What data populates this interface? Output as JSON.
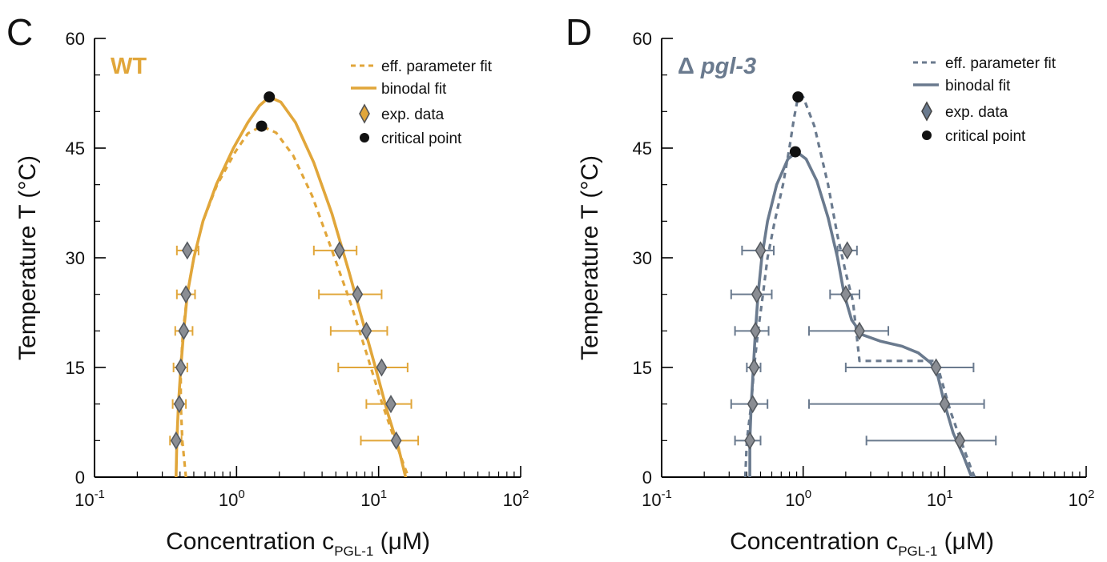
{
  "figure": {
    "panels": [
      {
        "letter": "C",
        "label": "WT",
        "color": "#e1a63a",
        "legend": [
          "eff. parameter fit",
          "binodal fit",
          "exp. data",
          "critical point"
        ]
      },
      {
        "letter": "D",
        "label_symbol": "Δ",
        "label_gene": "pgl-3",
        "color": "#6a7a8e",
        "legend": [
          "eff. parameter fit",
          "binodal fit",
          "exp. data",
          "critical point"
        ]
      }
    ],
    "xlabel_main": "Concentration c",
    "xlabel_sub": "PGL-1",
    "xlabel_unit": "(μM)",
    "ylabel": "Temperature T (°C)",
    "xtick_base": "10",
    "xtick_exps": [
      "-1",
      "0",
      "1",
      "2"
    ],
    "ytick_labels": [
      "0",
      "15",
      "30",
      "45",
      "60"
    ]
  },
  "chart_data": [
    {
      "type": "scatter",
      "panel": "C",
      "title": "WT",
      "xlabel": "Concentration cPGL-1 (μM)",
      "ylabel": "Temperature T (°C)",
      "xscale": "log",
      "xlim": [
        0.1,
        100
      ],
      "ylim": [
        0,
        60
      ],
      "xticks": [
        0.1,
        1,
        10,
        100
      ],
      "yticks": [
        0,
        15,
        30,
        45,
        60
      ],
      "legend_position": "top-right",
      "series": [
        {
          "name": "exp. data",
          "kind": "points-with-xerr",
          "color": "#e1a63a",
          "points": [
            {
              "x": 0.45,
              "y": 31,
              "xerr": [
                0.38,
                0.54
              ]
            },
            {
              "x": 0.44,
              "y": 25,
              "xerr": [
                0.38,
                0.51
              ]
            },
            {
              "x": 0.425,
              "y": 20,
              "xerr": [
                0.37,
                0.49
              ]
            },
            {
              "x": 0.405,
              "y": 15,
              "xerr": [
                0.36,
                0.45
              ]
            },
            {
              "x": 0.395,
              "y": 10,
              "xerr": [
                0.355,
                0.44
              ]
            },
            {
              "x": 0.375,
              "y": 5,
              "xerr": [
                0.34,
                0.41
              ]
            },
            {
              "x": 5.3,
              "y": 31,
              "xerr": [
                3.5,
                7.0
              ]
            },
            {
              "x": 7.1,
              "y": 25,
              "xerr": [
                3.8,
                10.5
              ]
            },
            {
              "x": 8.2,
              "y": 20,
              "xerr": [
                4.6,
                11.5
              ]
            },
            {
              "x": 10.5,
              "y": 15,
              "xerr": [
                5.2,
                16
              ]
            },
            {
              "x": 12.2,
              "y": 10,
              "xerr": [
                8.2,
                17
              ]
            },
            {
              "x": 13.3,
              "y": 5,
              "xerr": [
                7.5,
                19
              ]
            }
          ]
        },
        {
          "name": "binodal fit",
          "kind": "line",
          "style": "solid",
          "color": "#e1a63a",
          "points": [
            [
              0.375,
              0
            ],
            [
              0.38,
              5
            ],
            [
              0.39,
              10
            ],
            [
              0.405,
              15
            ],
            [
              0.425,
              20
            ],
            [
              0.45,
              25
            ],
            [
              0.5,
              30
            ],
            [
              0.58,
              35
            ],
            [
              0.72,
              40
            ],
            [
              0.95,
              45
            ],
            [
              1.2,
              48.5
            ],
            [
              1.45,
              50.8
            ],
            [
              1.7,
              52
            ],
            [
              2.05,
              51.3
            ],
            [
              2.6,
              48.5
            ],
            [
              3.5,
              43
            ],
            [
              4.7,
              36
            ],
            [
              6.2,
              28
            ],
            [
              7.8,
              21
            ],
            [
              9.5,
              15
            ],
            [
              11.5,
              9
            ],
            [
              13.8,
              4
            ],
            [
              15.5,
              0
            ]
          ]
        },
        {
          "name": "eff. parameter fit",
          "kind": "line",
          "style": "dashed",
          "color": "#e1a63a",
          "points": [
            [
              0.44,
              0
            ],
            [
              0.415,
              5
            ],
            [
              0.405,
              10
            ],
            [
              0.405,
              15
            ],
            [
              0.42,
              20
            ],
            [
              0.45,
              25
            ],
            [
              0.5,
              30
            ],
            [
              0.58,
              35
            ],
            [
              0.73,
              40
            ],
            [
              0.98,
              44.5
            ],
            [
              1.2,
              47
            ],
            [
              1.5,
              48
            ],
            [
              1.9,
              47.1
            ],
            [
              2.5,
              44
            ],
            [
              3.4,
              38.5
            ],
            [
              4.7,
              31
            ],
            [
              6.3,
              24
            ],
            [
              8.2,
              17
            ],
            [
              10.2,
              11
            ],
            [
              12.5,
              6
            ],
            [
              15.5,
              1
            ],
            [
              16.3,
              0
            ]
          ]
        },
        {
          "name": "critical point",
          "kind": "points",
          "color": "#111111",
          "points": [
            {
              "x": 1.7,
              "y": 52
            },
            {
              "x": 1.5,
              "y": 48
            }
          ]
        }
      ]
    },
    {
      "type": "scatter",
      "panel": "D",
      "title": "Δ pgl-3",
      "xlabel": "Concentration cPGL-1 (μM)",
      "ylabel": "Temperature T (°C)",
      "xscale": "log",
      "xlim": [
        0.1,
        100
      ],
      "ylim": [
        0,
        60
      ],
      "xticks": [
        0.1,
        1,
        10,
        100
      ],
      "yticks": [
        0,
        15,
        30,
        45,
        60
      ],
      "legend_position": "top-right",
      "series": [
        {
          "name": "exp. data",
          "kind": "points-with-xerr",
          "color": "#6a7a8e",
          "points": [
            {
              "x": 0.5,
              "y": 31,
              "xerr": [
                0.37,
                0.62
              ]
            },
            {
              "x": 0.47,
              "y": 25,
              "xerr": [
                0.31,
                0.6
              ]
            },
            {
              "x": 0.46,
              "y": 20,
              "xerr": [
                0.33,
                0.57
              ]
            },
            {
              "x": 0.45,
              "y": 15,
              "xerr": [
                0.4,
                0.5
              ]
            },
            {
              "x": 0.44,
              "y": 10,
              "xerr": [
                0.31,
                0.56
              ]
            },
            {
              "x": 0.42,
              "y": 5,
              "xerr": [
                0.33,
                0.5
              ]
            },
            {
              "x": 2.05,
              "y": 31,
              "xerr": [
                1.75,
                2.4
              ]
            },
            {
              "x": 2.0,
              "y": 25,
              "xerr": [
                1.55,
                2.5
              ]
            },
            {
              "x": 2.5,
              "y": 20,
              "xerr": [
                1.1,
                4.0
              ]
            },
            {
              "x": 8.7,
              "y": 15,
              "xerr": [
                2.0,
                16
              ]
            },
            {
              "x": 10,
              "y": 10,
              "xerr": [
                1.1,
                19
              ]
            },
            {
              "x": 12.8,
              "y": 5,
              "xerr": [
                2.8,
                23
              ]
            }
          ]
        },
        {
          "name": "binodal fit",
          "kind": "line",
          "style": "solid",
          "color": "#6a7a8e",
          "points": [
            [
              0.42,
              0
            ],
            [
              0.42,
              5
            ],
            [
              0.43,
              10
            ],
            [
              0.445,
              15
            ],
            [
              0.46,
              20
            ],
            [
              0.48,
              25
            ],
            [
              0.51,
              30
            ],
            [
              0.56,
              35
            ],
            [
              0.65,
              40
            ],
            [
              0.78,
              43.5
            ],
            [
              0.9,
              44.5
            ],
            [
              1.05,
              43.5
            ],
            [
              1.25,
              40.5
            ],
            [
              1.5,
              35.5
            ],
            [
              1.75,
              30
            ],
            [
              1.95,
              25
            ],
            [
              2.2,
              21.5
            ],
            [
              2.6,
              19.5
            ],
            [
              3.5,
              18.6
            ],
            [
              5.0,
              17.9
            ],
            [
              6.5,
              17
            ],
            [
              8.0,
              15.6
            ],
            [
              8.9,
              14
            ],
            [
              10,
              10
            ],
            [
              11.5,
              6
            ],
            [
              13.5,
              3
            ],
            [
              15.5,
              0
            ]
          ]
        },
        {
          "name": "eff. parameter fit",
          "kind": "line",
          "style": "dashed",
          "color": "#6a7a8e",
          "points": [
            [
              0.39,
              0
            ],
            [
              0.4,
              5
            ],
            [
              0.43,
              10
            ],
            [
              0.45,
              15
            ],
            [
              0.48,
              20
            ],
            [
              0.52,
              25
            ],
            [
              0.56,
              30
            ],
            [
              0.63,
              35
            ],
            [
              0.72,
              40
            ],
            [
              0.8,
              45
            ],
            [
              0.86,
              49
            ],
            [
              0.92,
              52
            ],
            [
              1.0,
              52
            ],
            [
              1.2,
              48
            ],
            [
              1.5,
              40
            ],
            [
              1.75,
              33
            ],
            [
              2.0,
              28
            ],
            [
              2.25,
              24
            ],
            [
              2.5,
              15.9
            ],
            [
              8.7,
              15.9
            ],
            [
              9.6,
              13
            ],
            [
              11,
              9
            ],
            [
              13,
              5
            ],
            [
              15.5,
              1
            ],
            [
              16.3,
              0
            ]
          ]
        },
        {
          "name": "critical point",
          "kind": "points",
          "color": "#111111",
          "points": [
            {
              "x": 0.92,
              "y": 52
            },
            {
              "x": 0.88,
              "y": 44.5
            }
          ]
        }
      ]
    }
  ]
}
